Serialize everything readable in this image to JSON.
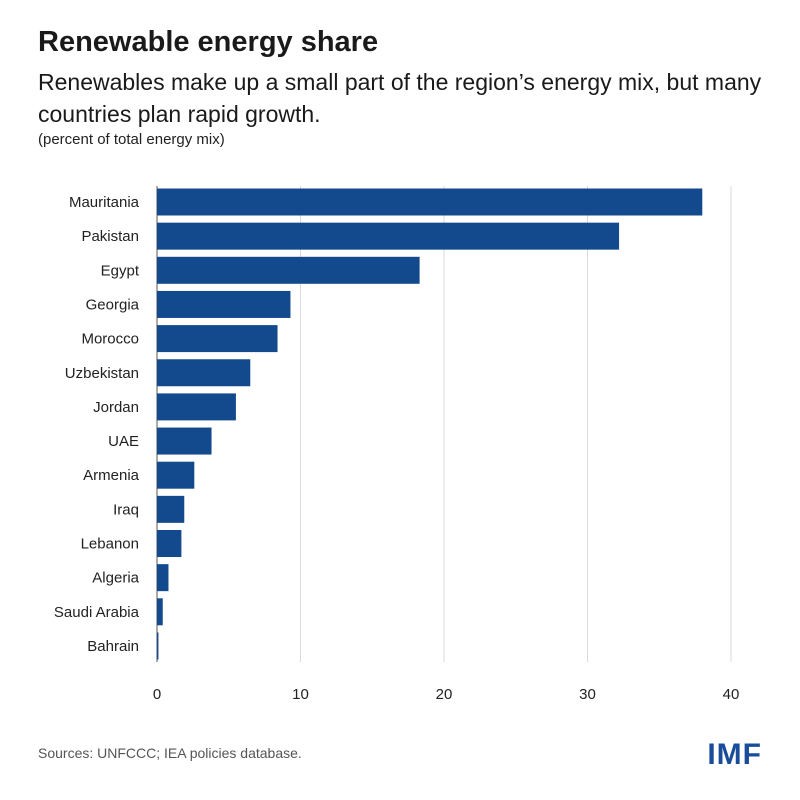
{
  "header": {
    "title": "Renewable energy share",
    "subtitle": "Renewables make up a small part of the region’s energy mix, but many countries plan rapid growth.",
    "unit_note": "(percent of total energy mix)"
  },
  "footer": {
    "source": "Sources: UNFCCC; IEA policies database.",
    "logo_text": "IMF"
  },
  "colors": {
    "bar": "#134a8e",
    "grid": "#d9d9d9",
    "logo": "#1a4c9c"
  },
  "chart_data": {
    "type": "bar",
    "orientation": "horizontal",
    "categories": [
      "Mauritania",
      "Pakistan",
      "Egypt",
      "Georgia",
      "Morocco",
      "Uzbekistan",
      "Jordan",
      "UAE",
      "Armenia",
      "Iraq",
      "Lebanon",
      "Algeria",
      "Saudi Arabia",
      "Bahrain"
    ],
    "values": [
      38,
      32.2,
      18.3,
      9.3,
      8.4,
      6.5,
      5.5,
      3.8,
      2.6,
      1.9,
      1.7,
      0.8,
      0.4,
      0.1
    ],
    "xlim": [
      0,
      40
    ],
    "xticks": [
      0,
      10,
      20,
      30,
      40
    ],
    "grid": true,
    "legend": "none"
  }
}
